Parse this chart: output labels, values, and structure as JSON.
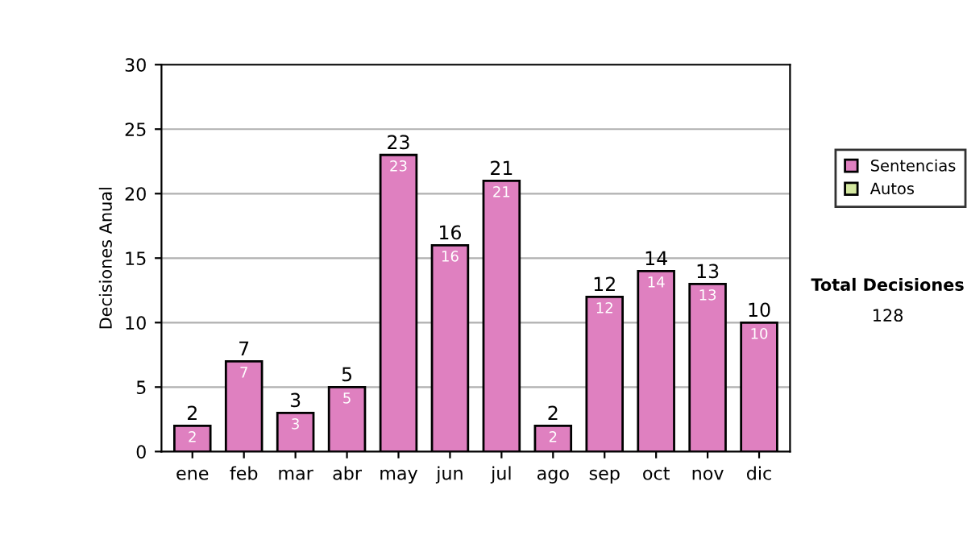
{
  "chart_data": {
    "type": "bar",
    "stacked": true,
    "ylabel": "Decisiones Anual",
    "categories": [
      "ene",
      "feb",
      "mar",
      "abr",
      "may",
      "jun",
      "jul",
      "ago",
      "sep",
      "oct",
      "nov",
      "dic"
    ],
    "series": [
      {
        "name": "Sentencias",
        "color": "#df80c0",
        "values": [
          2,
          7,
          3,
          5,
          23,
          16,
          21,
          2,
          12,
          14,
          13,
          10
        ],
        "value_labels": [
          "2",
          "7",
          "3",
          "5",
          "23",
          "16",
          "21",
          "2",
          "12",
          "14",
          "13",
          "10"
        ]
      },
      {
        "name": "Autos",
        "color": "#d4e8a0",
        "values": [
          null,
          null,
          null,
          null,
          null,
          null,
          null,
          null,
          null,
          null,
          null,
          null
        ]
      }
    ],
    "totals": [
      "2",
      "7",
      "3",
      "5",
      "23",
      "16",
      "21",
      "2",
      "12",
      "14",
      "13",
      "10"
    ],
    "ylim": [
      0,
      30
    ],
    "yticks": [
      0,
      5,
      10,
      15,
      20,
      25,
      30
    ],
    "grid": "y",
    "legend": "right",
    "annotations": [
      "Total Decisiones",
      "128"
    ]
  }
}
